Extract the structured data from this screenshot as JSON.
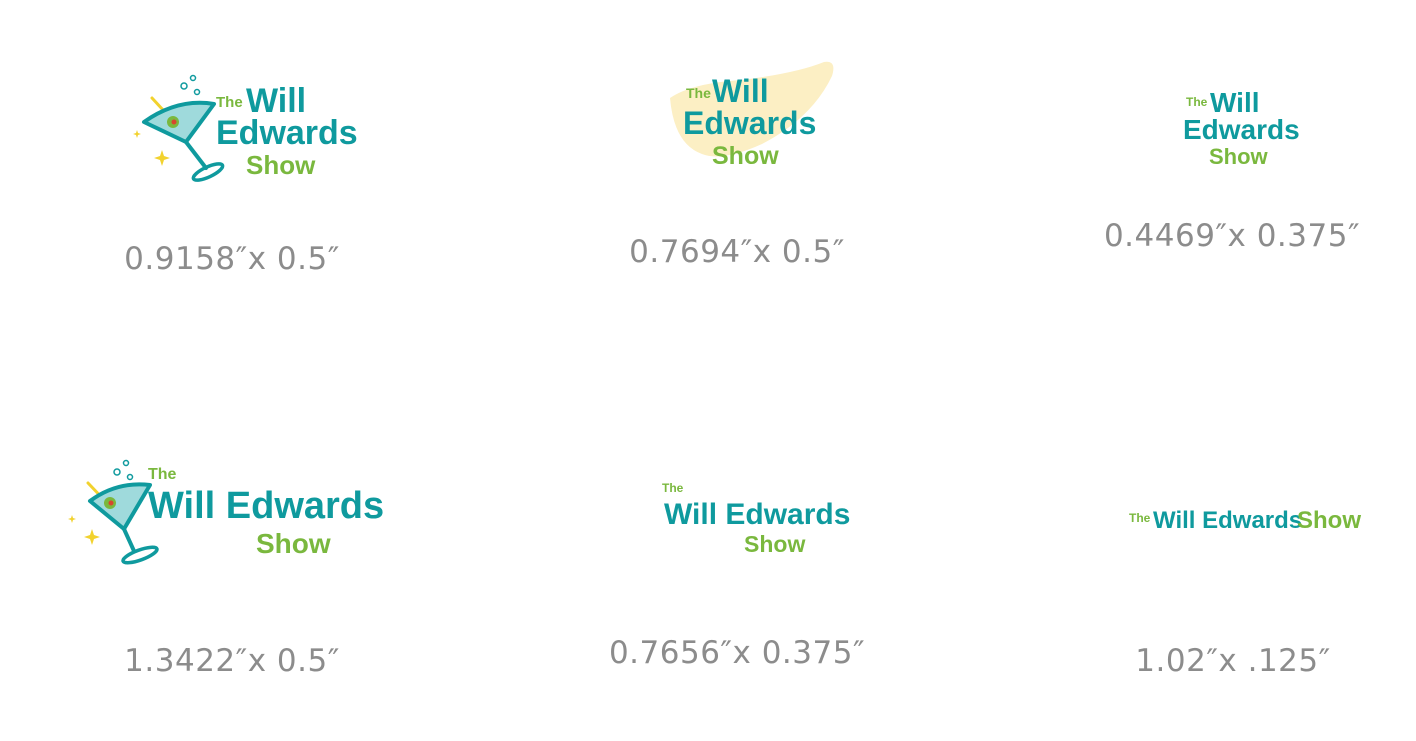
{
  "colors": {
    "teal": "#0f9a9e",
    "green": "#7ab83e",
    "label_gray": "#8c8c8c",
    "swoosh_yellow": "#fcefc4",
    "glass_tint": "#9fdadc",
    "olive": "#7ab83e",
    "pimento": "#d7462f",
    "sparkle": "#f2d22e"
  },
  "logo_text": {
    "the": "The",
    "will": "Will",
    "edwards": "Edwards",
    "will_edwards": "Will Edwards",
    "show": "Show"
  },
  "variants": [
    {
      "id": "stacked-with-glass",
      "size_label": "0.9158″x 0.5″"
    },
    {
      "id": "stacked-with-swoosh",
      "size_label": "0.7694″x 0.5″"
    },
    {
      "id": "stacked-text-only",
      "size_label": "0.4469″x 0.375″"
    },
    {
      "id": "wide-with-glass",
      "size_label": "1.3422″x 0.5″"
    },
    {
      "id": "wide-text-only",
      "size_label": "0.7656″x 0.375″"
    },
    {
      "id": "single-line",
      "size_label": "1.02″x .125″"
    }
  ],
  "icons": [
    "martini-glass-icon",
    "sparkle-icon",
    "bubble-icon",
    "swoosh-shape"
  ]
}
